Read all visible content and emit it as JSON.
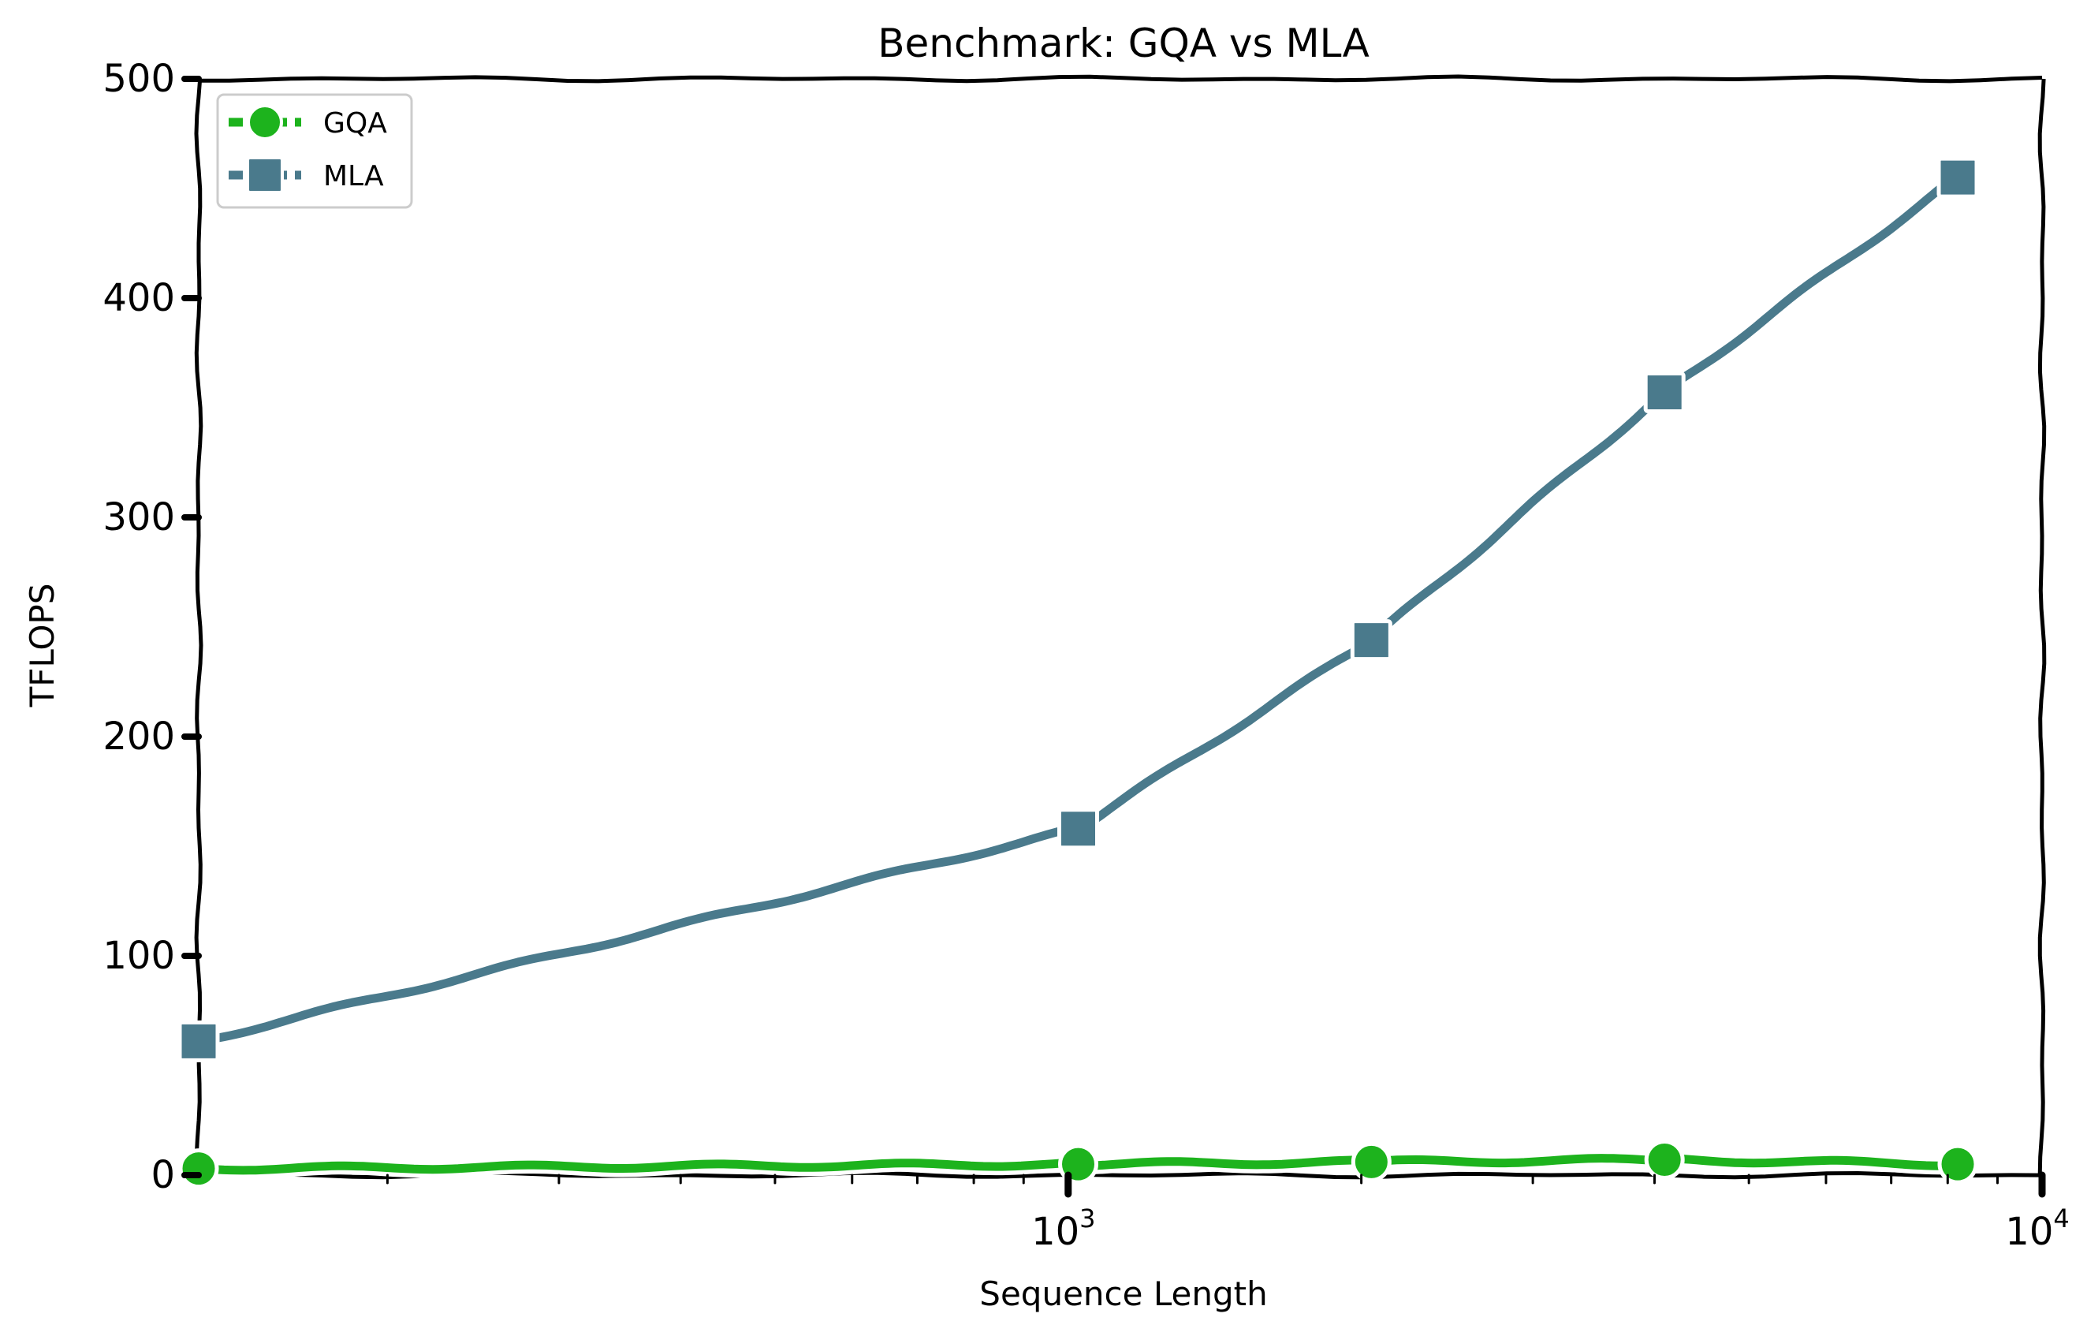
{
  "chart_data": {
    "type": "line",
    "title": "Benchmark: GQA vs MLA",
    "xlabel": "Sequence Length",
    "ylabel": "TFLOPS",
    "x_scale": "log",
    "xlim": [
      128,
      10000
    ],
    "ylim": [
      0,
      500
    ],
    "x": [
      128,
      1024,
      2048,
      4096,
      8192
    ],
    "x_ticks": [
      {
        "value": 1000,
        "base": "10",
        "exp": "3"
      },
      {
        "value": 10000,
        "base": "10",
        "exp": "4"
      }
    ],
    "y_ticks": [
      0,
      100,
      200,
      300,
      400,
      500
    ],
    "series": [
      {
        "name": "GQA",
        "values": [
          3,
          5,
          6,
          7,
          5
        ],
        "color": "#1db31d",
        "marker": "circle"
      },
      {
        "name": "MLA",
        "values": [
          61,
          158,
          244,
          357,
          455
        ],
        "color": "#4a7a8c",
        "marker": "square"
      }
    ],
    "legend": "top-left",
    "grid": false,
    "style": "xkcd"
  }
}
